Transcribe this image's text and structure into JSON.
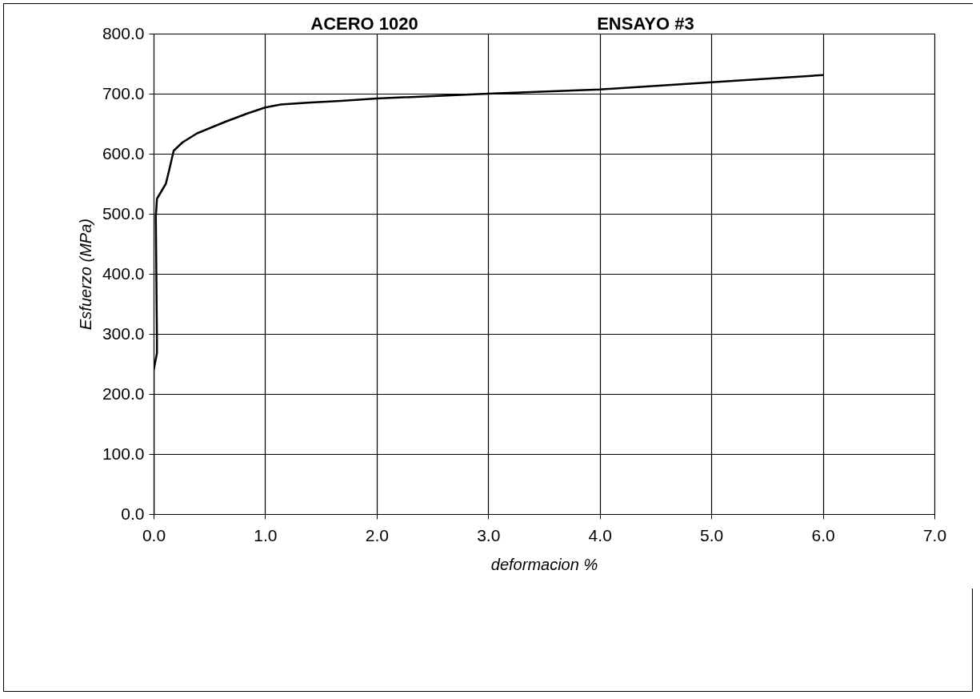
{
  "chart_data": {
    "type": "line",
    "title": "ACERO 1020",
    "subtitle": "ENSAYO #3",
    "xlabel": "deformacion %",
    "ylabel": "Esfuerzo (MPa)",
    "x": [
      0,
      0,
      0.03,
      0.03,
      0.02,
      0.03,
      0.11,
      0.14,
      0.18,
      0.26,
      0.39,
      0.64,
      0.84,
      1.0,
      1.14,
      1.38,
      1.68,
      2.0,
      3.0,
      4.0,
      5.0,
      6.0
    ],
    "series": [
      {
        "color": "#000000",
        "values": [
          0,
          239,
          268,
          288,
          495,
          525,
          550,
          573,
          605,
          619,
          634,
          653,
          667,
          677,
          682,
          685,
          688,
          692,
          700,
          707,
          719,
          731
        ]
      }
    ],
    "xlim": [
      0,
      7
    ],
    "ylim": [
      0,
      800
    ],
    "xticks": [
      {
        "value": 0,
        "label": "0.0"
      },
      {
        "value": 1,
        "label": "1.0"
      },
      {
        "value": 2,
        "label": "2.0"
      },
      {
        "value": 3,
        "label": "3.0"
      },
      {
        "value": 4,
        "label": "4.0"
      },
      {
        "value": 5,
        "label": "5.0"
      },
      {
        "value": 6,
        "label": "6.0"
      },
      {
        "value": 7,
        "label": "7.0"
      }
    ],
    "yticks": [
      {
        "value": 0,
        "label": "0.0"
      },
      {
        "value": 100,
        "label": "100.0"
      },
      {
        "value": 200,
        "label": "200.0"
      },
      {
        "value": 300,
        "label": "300.0"
      },
      {
        "value": 400,
        "label": "400.0"
      },
      {
        "value": 500,
        "label": "500.0"
      },
      {
        "value": 600,
        "label": "600.0"
      },
      {
        "value": 700,
        "label": "700.0"
      },
      {
        "value": 800,
        "label": "800.0"
      }
    ],
    "grid": true,
    "line_style": "solid",
    "marker": "none"
  }
}
